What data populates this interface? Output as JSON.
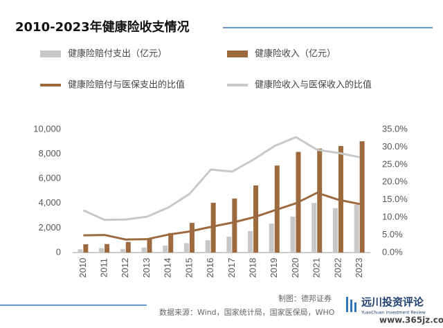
{
  "chart_data": {
    "type": "bar-line",
    "title": "2010-2023年健康险收支情况",
    "categories": [
      "2010",
      "2011",
      "2012",
      "2013",
      "2014",
      "2015",
      "2016",
      "2017",
      "2018",
      "2019",
      "2020",
      "2021",
      "2022",
      "2023"
    ],
    "series": [
      {
        "name": "健康险赔付支出（亿元）",
        "kind": "bar",
        "color": "#c8c8c8",
        "values": [
          264,
          360,
          298,
          411,
          571,
          763,
          1001,
          1295,
          1744,
          2351,
          2921,
          4029,
          3600,
          3900
        ]
      },
      {
        "name": "健康险收入（亿元）",
        "kind": "bar",
        "color": "#9c6a3e",
        "values": [
          677,
          692,
          863,
          1123,
          1587,
          2410,
          4042,
          4389,
          5448,
          7066,
          8173,
          8447,
          8653,
          9035
        ]
      },
      {
        "name": "健康险赔付与医保支出的比值",
        "kind": "line",
        "axis": "y2",
        "color": "#9c6a3e",
        "values": [
          4.9,
          5.0,
          3.7,
          3.8,
          5.1,
          6.0,
          7.3,
          8.5,
          10.0,
          12.0,
          14.0,
          17.0,
          15.0,
          13.8
        ]
      },
      {
        "name": "健康险收入与医保收入的比值",
        "kind": "line",
        "axis": "y2",
        "color": "#c8c8c8",
        "values": [
          12.0,
          9.3,
          9.4,
          10.2,
          12.8,
          16.7,
          23.6,
          23.0,
          26.4,
          30.3,
          32.8,
          29.2,
          28.3,
          27.1
        ]
      }
    ],
    "ylim": [
      0,
      10000
    ],
    "yticks": [
      0,
      {
        "value": 2000,
        "label": "2,000"
      },
      {
        "value": 4000,
        "label": "4,000"
      },
      {
        "value": 6000,
        "label": "6,000"
      },
      {
        "value": 8000,
        "label": "8,000"
      },
      {
        "value": 10000,
        "label": "10,000"
      }
    ],
    "y2lim": [
      0,
      35
    ],
    "y2ticks": [
      {
        "value": 0,
        "label": "0.0%"
      },
      {
        "value": 5,
        "label": "5.0%"
      },
      {
        "value": 10,
        "label": "10.0%"
      },
      {
        "value": 15,
        "label": "15.0%"
      },
      {
        "value": 20,
        "label": "20.0%"
      },
      {
        "value": 25,
        "label": "25.0%"
      },
      {
        "value": 30,
        "label": "30.0%"
      },
      {
        "value": 35,
        "label": "35.0%"
      }
    ]
  },
  "footer": {
    "credit": "制图：德邦证券",
    "source": "数据来源：Wind，国家统计局，国家医保局，WHO",
    "brand": "远川投资评论",
    "brand_en": "YuanChuan Investment Review",
    "watermark": "www.365jz.com"
  }
}
